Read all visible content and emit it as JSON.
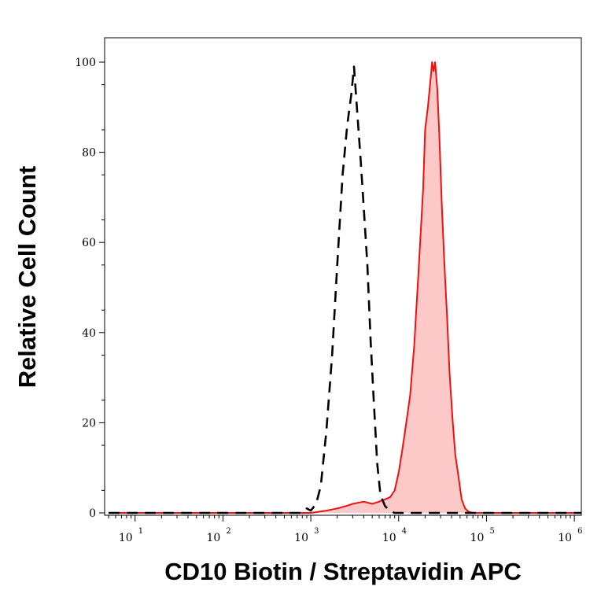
{
  "chart_data": {
    "type": "area",
    "xlabel": "CD10 Biotin / Streptavidin APC",
    "ylabel": "Relative Cell Count",
    "x_scale": "log",
    "xlim": [
      4.5,
      1200000
    ],
    "ylim": [
      0,
      100
    ],
    "x_ticks": [
      {
        "base": "10",
        "exp": "1",
        "value": 10
      },
      {
        "base": "10",
        "exp": "2",
        "value": 100
      },
      {
        "base": "10",
        "exp": "3",
        "value": 1000
      },
      {
        "base": "10",
        "exp": "4",
        "value": 10000
      },
      {
        "base": "10",
        "exp": "5",
        "value": 100000
      },
      {
        "base": "10",
        "exp": "6",
        "value": 1000000
      }
    ],
    "y_ticks": [
      "0",
      "20",
      "40",
      "60",
      "80",
      "100"
    ],
    "grid": false,
    "legend": "none",
    "series": [
      {
        "style": "dashed",
        "color": "#000000",
        "fill": "none",
        "points": [
          [
            5,
            0
          ],
          [
            800,
            0
          ],
          [
            900,
            1
          ],
          [
            1000,
            0.5
          ],
          [
            1150,
            2
          ],
          [
            1300,
            6
          ],
          [
            1500,
            18
          ],
          [
            1750,
            35
          ],
          [
            2000,
            55
          ],
          [
            2300,
            75
          ],
          [
            2600,
            86
          ],
          [
            2900,
            93
          ],
          [
            3100,
            99
          ],
          [
            3400,
            88
          ],
          [
            3700,
            78
          ],
          [
            4000,
            68
          ],
          [
            4400,
            55
          ],
          [
            4800,
            38
          ],
          [
            5200,
            25
          ],
          [
            5700,
            11
          ],
          [
            6200,
            4
          ],
          [
            7000,
            1.5
          ],
          [
            8000,
            0.4
          ],
          [
            9000,
            0
          ],
          [
            1200000,
            0
          ]
        ]
      },
      {
        "style": "solid",
        "color": "#ee1111",
        "fill": "#fdc8c8",
        "points": [
          [
            5,
            0
          ],
          [
            1000,
            0
          ],
          [
            1500,
            0.5
          ],
          [
            2000,
            1
          ],
          [
            2500,
            1.5
          ],
          [
            3000,
            2
          ],
          [
            4000,
            2.5
          ],
          [
            5000,
            2
          ],
          [
            6000,
            2.5
          ],
          [
            7000,
            3
          ],
          [
            8000,
            3.5
          ],
          [
            9000,
            5
          ],
          [
            10000,
            9
          ],
          [
            11000,
            14
          ],
          [
            12000,
            19
          ],
          [
            13500,
            26
          ],
          [
            15000,
            37
          ],
          [
            17000,
            55
          ],
          [
            19000,
            72
          ],
          [
            20000,
            85
          ],
          [
            21500,
            90
          ],
          [
            23000,
            96
          ],
          [
            24000,
            100
          ],
          [
            25000,
            98
          ],
          [
            26000,
            100
          ],
          [
            27500,
            94
          ],
          [
            29000,
            84
          ],
          [
            31000,
            68
          ],
          [
            33000,
            56
          ],
          [
            35500,
            44
          ],
          [
            38000,
            31
          ],
          [
            41000,
            21
          ],
          [
            44000,
            13
          ],
          [
            48000,
            8
          ],
          [
            52000,
            3
          ],
          [
            57000,
            1
          ],
          [
            62000,
            0.3
          ],
          [
            70000,
            0
          ],
          [
            1200000,
            0
          ]
        ]
      }
    ]
  }
}
